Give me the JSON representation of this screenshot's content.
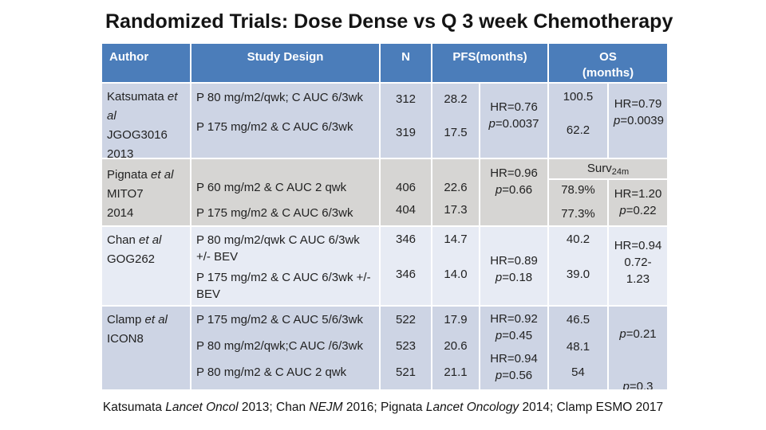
{
  "title": "Randomized Trials: Dose Dense vs Q 3 week Chemotherapy",
  "colors": {
    "header_bg": "#4b7dba",
    "row_blue": "#cdd4e4",
    "row_grey": "#d6d5d3",
    "row_light": "#e7ebf4",
    "header_text": "#ffffff"
  },
  "table": {
    "headers": {
      "author": "Author",
      "design": "Study Design",
      "n": "N",
      "pfs": "PFS(months)",
      "os_line1": "OS",
      "os_line2": "(months)"
    },
    "rows": [
      {
        "author": {
          "name": "Katsumata ",
          "etal": "et al",
          "id": "JGOG3016",
          "year": "2013"
        },
        "arms": [
          "P 80 mg/m2/qwk; C AUC 6/3wk",
          "P 175 mg/m2 & C AUC 6/3wk"
        ],
        "n": [
          "312",
          "319"
        ],
        "pfs": [
          "28.2",
          "17.5"
        ],
        "pfs_hr": {
          "hr": "HR=0.76",
          "p": "p",
          "pv": "=0.0037"
        },
        "os": [
          "100.5",
          "62.2"
        ],
        "os_hr": {
          "hr": "HR=0.79",
          "p": "p",
          "pv": "=0.0039"
        }
      },
      {
        "author": {
          "name": "Pignata ",
          "etal": "et al",
          "id": "MITO7",
          "year": "2014"
        },
        "arms": [
          "P 60 mg/m2 & C AUC 2 qwk",
          "P 175 mg/m2 & C AUC 6/3wk"
        ],
        "n": [
          "406",
          "404"
        ],
        "pfs": [
          "22.6",
          "17.3"
        ],
        "pfs_hr": {
          "hr": "HR=0.96",
          "p": "p",
          "pv": "=0.66"
        },
        "surv": {
          "label": "Surv",
          "sub": "24m"
        },
        "os": [
          "78.9%",
          "77.3%"
        ],
        "os_hr": {
          "hr": "HR=1.20",
          "p": "p",
          "pv": "=0.22"
        }
      },
      {
        "author": {
          "name": "Chan ",
          "etal": "et al",
          "id": "GOG262"
        },
        "arms": [
          "P 80 mg/m2/qwk C AUC 6/3wk +/- BEV",
          "P 175 mg/m2 & C AUC 6/3wk +/- BEV"
        ],
        "n": [
          "346",
          "346"
        ],
        "pfs": [
          "14.7",
          "14.0"
        ],
        "pfs_hr": {
          "hr": "HR=0.89",
          "p": "p",
          "pv": "=0.18"
        },
        "os": [
          "40.2",
          "39.0"
        ],
        "os_hr": {
          "hr": "HR=0.94",
          "ci": "0.72-1.23"
        }
      },
      {
        "author": {
          "name": "Clamp ",
          "etal": "et al",
          "id": "ICON8"
        },
        "arms": [
          "P 175 mg/m2 & C AUC 5/6/3wk",
          "P 80 mg/m2/qwk;C AUC /6/3wk",
          "P 80 mg/m2 & C AUC 2 qwk"
        ],
        "n": [
          "522",
          "523",
          "521"
        ],
        "pfs": [
          "17.9",
          "20.6",
          "21.1"
        ],
        "pfs_hr": [
          {
            "hr": "HR=0.92",
            "p": "p",
            "pv": "=0.45"
          },
          {
            "hr": "HR=0.94",
            "p": "p",
            "pv": "=0.56"
          }
        ],
        "os": [
          "46.5",
          "48.1",
          "54"
        ],
        "os_hr": [
          {
            "p": "p",
            "pv": "=0.21"
          },
          {
            "p": "p",
            "pv": "=0.3"
          }
        ]
      }
    ]
  },
  "footer": {
    "s1": "Katsumata ",
    "s2": "Lancet Oncol",
    "s3": " 2013; Chan ",
    "s4": "NEJM",
    "s5": " 2016; Pignata ",
    "s6": "Lancet Oncology",
    "s7": " 2014; Clamp ESMO 2017"
  }
}
